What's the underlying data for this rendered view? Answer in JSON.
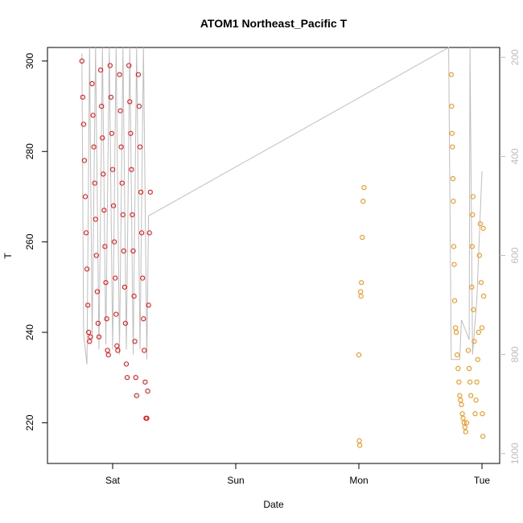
{
  "chart_data": {
    "type": "scatter",
    "title": "ATOM1 Northeast_Pacific T",
    "xlabel": "Date",
    "ylabel": "T",
    "x_ticks": [
      "Sat",
      "Sun",
      "Mon",
      "Tue"
    ],
    "y_ticks": [
      220,
      240,
      260,
      280,
      300
    ],
    "ylim": [
      211,
      303
    ],
    "y2_ticks": [
      200,
      400,
      600,
      800,
      1000
    ],
    "y2lim": [
      1020,
      180
    ],
    "y2_reversed": true,
    "grid": false,
    "colors": {
      "series_1": "#ff0000",
      "series_2": "#ff8c00",
      "pressure_line": "#bebebe",
      "y2_axis": "#bdbdbd"
    },
    "series": [
      {
        "color": "#ff0000",
        "marker": "circle-open",
        "values": [
          {
            "x": "Fri 18:00",
            "y": 300
          },
          {
            "x": "Fri 18:10",
            "y": 292
          },
          {
            "x": "Fri 18:20",
            "y": 286
          },
          {
            "x": "Fri 18:30",
            "y": 278
          },
          {
            "x": "Fri 18:40",
            "y": 270
          },
          {
            "x": "Fri 18:50",
            "y": 262
          },
          {
            "x": "Fri 19:00",
            "y": 254
          },
          {
            "x": "Fri 19:10",
            "y": 246
          },
          {
            "x": "Fri 19:20",
            "y": 240
          },
          {
            "x": "Fri 19:30",
            "y": 238
          },
          {
            "x": "Fri 19:40",
            "y": 239
          },
          {
            "x": "Fri 20:00",
            "y": 295
          },
          {
            "x": "Fri 20:10",
            "y": 288
          },
          {
            "x": "Fri 20:20",
            "y": 281
          },
          {
            "x": "Fri 20:30",
            "y": 273
          },
          {
            "x": "Fri 20:40",
            "y": 265
          },
          {
            "x": "Fri 20:50",
            "y": 257
          },
          {
            "x": "Fri 21:00",
            "y": 249
          },
          {
            "x": "Fri 21:10",
            "y": 242
          },
          {
            "x": "Fri 21:20",
            "y": 239
          },
          {
            "x": "Fri 21:40",
            "y": 298
          },
          {
            "x": "Fri 21:50",
            "y": 290
          },
          {
            "x": "Fri 22:00",
            "y": 283
          },
          {
            "x": "Fri 22:10",
            "y": 275
          },
          {
            "x": "Fri 22:20",
            "y": 267
          },
          {
            "x": "Fri 22:30",
            "y": 259
          },
          {
            "x": "Fri 22:40",
            "y": 251
          },
          {
            "x": "Fri 22:50",
            "y": 243
          },
          {
            "x": "Fri 23:00",
            "y": 236
          },
          {
            "x": "Fri 23:10",
            "y": 235
          },
          {
            "x": "Fri 23:30",
            "y": 299
          },
          {
            "x": "Fri 23:40",
            "y": 292
          },
          {
            "x": "Fri 23:50",
            "y": 284
          },
          {
            "x": "Sat 00:00",
            "y": 276
          },
          {
            "x": "Sat 00:10",
            "y": 268
          },
          {
            "x": "Sat 00:20",
            "y": 260
          },
          {
            "x": "Sat 00:30",
            "y": 252
          },
          {
            "x": "Sat 00:40",
            "y": 244
          },
          {
            "x": "Sat 00:50",
            "y": 237
          },
          {
            "x": "Sat 01:00",
            "y": 236
          },
          {
            "x": "Sat 01:20",
            "y": 297
          },
          {
            "x": "Sat 01:30",
            "y": 289
          },
          {
            "x": "Sat 01:40",
            "y": 281
          },
          {
            "x": "Sat 01:50",
            "y": 273
          },
          {
            "x": "Sat 02:00",
            "y": 266
          },
          {
            "x": "Sat 02:10",
            "y": 258
          },
          {
            "x": "Sat 02:20",
            "y": 250
          },
          {
            "x": "Sat 02:30",
            "y": 242
          },
          {
            "x": "Sat 02:40",
            "y": 233
          },
          {
            "x": "Sat 02:50",
            "y": 230
          },
          {
            "x": "Sat 03:10",
            "y": 299
          },
          {
            "x": "Sat 03:20",
            "y": 291
          },
          {
            "x": "Sat 03:30",
            "y": 284
          },
          {
            "x": "Sat 03:40",
            "y": 276
          },
          {
            "x": "Sat 03:50",
            "y": 266
          },
          {
            "x": "Sat 04:00",
            "y": 258
          },
          {
            "x": "Sat 04:10",
            "y": 248
          },
          {
            "x": "Sat 04:20",
            "y": 238
          },
          {
            "x": "Sat 04:30",
            "y": 230
          },
          {
            "x": "Sat 04:40",
            "y": 226
          },
          {
            "x": "Sat 05:00",
            "y": 297
          },
          {
            "x": "Sat 05:10",
            "y": 290
          },
          {
            "x": "Sat 05:20",
            "y": 281
          },
          {
            "x": "Sat 05:30",
            "y": 271
          },
          {
            "x": "Sat 05:40",
            "y": 262
          },
          {
            "x": "Sat 05:50",
            "y": 252
          },
          {
            "x": "Sat 06:00",
            "y": 243
          },
          {
            "x": "Sat 06:10",
            "y": 236
          },
          {
            "x": "Sat 06:20",
            "y": 229
          },
          {
            "x": "Sat 06:30",
            "y": 221
          },
          {
            "x": "Sat 06:40",
            "y": 221
          },
          {
            "x": "Sat 06:50",
            "y": 227
          },
          {
            "x": "Sat 07:00",
            "y": 246
          },
          {
            "x": "Sat 07:10",
            "y": 262
          },
          {
            "x": "Sat 07:20",
            "y": 271
          }
        ]
      },
      {
        "color": "#ff8c00",
        "marker": "circle-open",
        "values": [
          {
            "x": "Mon 00:00",
            "y": 235
          },
          {
            "x": "Mon 00:05",
            "y": 216
          },
          {
            "x": "Mon 00:10",
            "y": 215
          },
          {
            "x": "Mon 00:20",
            "y": 249
          },
          {
            "x": "Mon 00:25",
            "y": 248
          },
          {
            "x": "Mon 00:30",
            "y": 251
          },
          {
            "x": "Mon 00:40",
            "y": 261
          },
          {
            "x": "Mon 00:50",
            "y": 269
          },
          {
            "x": "Mon 01:00",
            "y": 272
          },
          {
            "x": "Mon 18:00",
            "y": 297
          },
          {
            "x": "Mon 18:05",
            "y": 290
          },
          {
            "x": "Mon 18:10",
            "y": 284
          },
          {
            "x": "Mon 18:15",
            "y": 281
          },
          {
            "x": "Mon 18:20",
            "y": 274
          },
          {
            "x": "Mon 18:25",
            "y": 269
          },
          {
            "x": "Mon 18:30",
            "y": 259
          },
          {
            "x": "Mon 18:35",
            "y": 255
          },
          {
            "x": "Mon 18:40",
            "y": 247
          },
          {
            "x": "Mon 18:50",
            "y": 241
          },
          {
            "x": "Mon 19:00",
            "y": 240
          },
          {
            "x": "Mon 19:10",
            "y": 235
          },
          {
            "x": "Mon 19:20",
            "y": 232
          },
          {
            "x": "Mon 19:30",
            "y": 229
          },
          {
            "x": "Mon 19:40",
            "y": 226
          },
          {
            "x": "Mon 19:50",
            "y": 225
          },
          {
            "x": "Mon 20:00",
            "y": 224
          },
          {
            "x": "Mon 20:10",
            "y": 222
          },
          {
            "x": "Mon 20:20",
            "y": 221
          },
          {
            "x": "Mon 20:30",
            "y": 220
          },
          {
            "x": "Mon 20:40",
            "y": 219
          },
          {
            "x": "Mon 20:50",
            "y": 218
          },
          {
            "x": "Mon 21:00",
            "y": 220
          },
          {
            "x": "Mon 21:20",
            "y": 236
          },
          {
            "x": "Mon 21:30",
            "y": 232
          },
          {
            "x": "Mon 21:40",
            "y": 229
          },
          {
            "x": "Mon 21:50",
            "y": 226
          },
          {
            "x": "Mon 22:00",
            "y": 250
          },
          {
            "x": "Mon 22:05",
            "y": 259
          },
          {
            "x": "Mon 22:10",
            "y": 266
          },
          {
            "x": "Mon 22:15",
            "y": 270
          },
          {
            "x": "Mon 22:20",
            "y": 245
          },
          {
            "x": "Mon 22:30",
            "y": 238
          },
          {
            "x": "Mon 22:40",
            "y": 222
          },
          {
            "x": "Mon 22:50",
            "y": 225
          },
          {
            "x": "Mon 23:00",
            "y": 229
          },
          {
            "x": "Mon 23:10",
            "y": 234
          },
          {
            "x": "Mon 23:20",
            "y": 240
          },
          {
            "x": "Mon 23:30",
            "y": 257
          },
          {
            "x": "Mon 23:40",
            "y": 264
          },
          {
            "x": "Mon 23:50",
            "y": 251
          },
          {
            "x": "Tue 00:00",
            "y": 241
          },
          {
            "x": "Tue 00:05",
            "y": 222
          },
          {
            "x": "Tue 00:10",
            "y": 217
          },
          {
            "x": "Tue 00:15",
            "y": 263
          },
          {
            "x": "Tue 00:20",
            "y": 248
          }
        ]
      }
    ],
    "pressure_line": [
      {
        "x": "Fri 18:00",
        "y2": 192
      },
      {
        "x": "Fri 18:20",
        "y2": 760
      },
      {
        "x": "Fri 19:00",
        "y2": 820
      },
      {
        "x": "Fri 19:30",
        "y2": 180
      },
      {
        "x": "Fri 20:00",
        "y2": 770
      },
      {
        "x": "Fri 20:40",
        "y2": 180
      },
      {
        "x": "Fri 21:20",
        "y2": 790
      },
      {
        "x": "Fri 22:00",
        "y2": 180
      },
      {
        "x": "Fri 22:40",
        "y2": 780
      },
      {
        "x": "Fri 23:20",
        "y2": 180
      },
      {
        "x": "Sat 00:00",
        "y2": 790
      },
      {
        "x": "Sat 00:40",
        "y2": 180
      },
      {
        "x": "Sat 01:20",
        "y2": 800
      },
      {
        "x": "Sat 02:00",
        "y2": 180
      },
      {
        "x": "Sat 02:40",
        "y2": 790
      },
      {
        "x": "Sat 03:20",
        "y2": 180
      },
      {
        "x": "Sat 04:00",
        "y2": 800
      },
      {
        "x": "Sat 04:40",
        "y2": 180
      },
      {
        "x": "Sat 05:20",
        "y2": 790
      },
      {
        "x": "Sat 06:00",
        "y2": 180
      },
      {
        "x": "Sat 06:40",
        "y2": 810
      },
      {
        "x": "Sat 07:00",
        "y2": 520
      },
      {
        "x": "Mon 17:30",
        "y2": 180
      },
      {
        "x": "Mon 18:00",
        "y2": 810
      },
      {
        "x": "Mon 19:40",
        "y2": 810
      },
      {
        "x": "Mon 20:00",
        "y2": 730
      },
      {
        "x": "Mon 21:30",
        "y2": 770
      },
      {
        "x": "Mon 21:40",
        "y2": 180
      },
      {
        "x": "Mon 22:10",
        "y2": 800
      },
      {
        "x": "Mon 23:00",
        "y2": 690
      },
      {
        "x": "Tue 00:00",
        "y2": 430
      }
    ]
  }
}
